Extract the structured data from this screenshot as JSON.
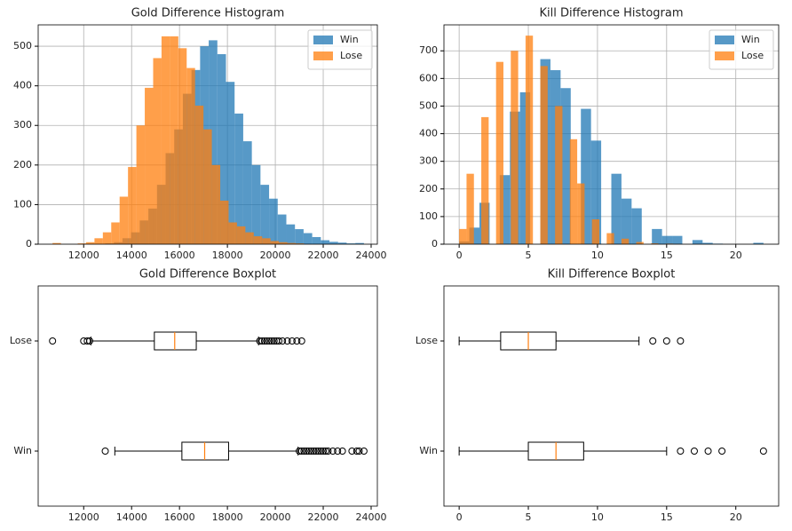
{
  "chart_data": [
    {
      "type": "histogram",
      "title": "Gold Difference Histogram",
      "grid": true,
      "legend": "upper right",
      "alpha": 0.75,
      "xlim": [
        10100,
        24260
      ],
      "xticks": [
        12000,
        14000,
        16000,
        18000,
        20000,
        22000,
        24000
      ],
      "ylim": [
        0,
        554
      ],
      "yticks": [
        0,
        100,
        200,
        300,
        400,
        500
      ],
      "series": [
        {
          "name": "Win",
          "color": "#1f77b4",
          "bins": [
            12900,
            13260,
            13620,
            13980,
            14340,
            14700,
            15060,
            15420,
            15780,
            16140,
            16500,
            16860,
            17220,
            17580,
            17940,
            18300,
            18660,
            19020,
            19380,
            19740,
            20100,
            20460,
            20820,
            21180,
            21540,
            21900,
            22260,
            22620,
            22980,
            23340,
            23700
          ],
          "values": [
            2,
            5,
            15,
            30,
            60,
            90,
            150,
            230,
            290,
            380,
            440,
            500,
            515,
            480,
            410,
            330,
            260,
            200,
            150,
            115,
            75,
            50,
            38,
            28,
            18,
            10,
            6,
            4,
            2,
            3
          ]
        },
        {
          "name": "Lose",
          "color": "#ff7f0e",
          "bins": [
            10700,
            11050,
            11400,
            11750,
            12100,
            12450,
            12800,
            13150,
            13500,
            13850,
            14200,
            14550,
            14900,
            15250,
            15600,
            15950,
            16300,
            16650,
            17000,
            17350,
            17700,
            18050,
            18400,
            18750,
            19100,
            19450,
            19800,
            20150,
            20500,
            20850,
            21200
          ],
          "values": [
            3,
            0,
            0,
            2,
            5,
            15,
            30,
            55,
            120,
            195,
            300,
            395,
            470,
            525,
            525,
            495,
            445,
            350,
            290,
            200,
            110,
            55,
            45,
            30,
            20,
            15,
            8,
            5,
            3,
            2
          ]
        }
      ]
    },
    {
      "type": "histogram",
      "title": "Kill Difference Histogram",
      "grid": true,
      "legend": "upper right",
      "alpha": 0.75,
      "xlim": [
        -1.1,
        23.1
      ],
      "xticks": [
        0,
        5,
        10,
        15,
        20
      ],
      "ylim": [
        0,
        794
      ],
      "yticks": [
        0,
        100,
        200,
        300,
        400,
        500,
        600,
        700
      ],
      "series": [
        {
          "name": "Win",
          "color": "#1f77b4",
          "bins": [
            0,
            0.7333,
            1.4667,
            2.2,
            2.9333,
            3.6667,
            4.4,
            5.1333,
            5.8667,
            6.6,
            7.3333,
            8.0667,
            8.8,
            9.5333,
            10.2667,
            11,
            11.7333,
            12.4667,
            13.2,
            13.9333,
            14.6667,
            15.4,
            16.1333,
            16.8667,
            17.6,
            18.3333,
            19.0667,
            19.8,
            20.5333,
            21.2667,
            22
          ],
          "values": [
            10,
            60,
            150,
            0,
            250,
            480,
            550,
            0,
            670,
            630,
            565,
            0,
            490,
            375,
            0,
            255,
            165,
            130,
            0,
            55,
            30,
            30,
            0,
            15,
            5,
            2,
            0,
            0,
            0,
            5
          ]
        },
        {
          "name": "Lose",
          "color": "#ff7f0e",
          "bins": [
            0,
            0.5333,
            1.0667,
            1.6,
            2.1333,
            2.6667,
            3.2,
            3.7333,
            4.2667,
            4.8,
            5.3333,
            5.8667,
            6.4,
            6.9333,
            7.4667,
            8,
            8.5333,
            9.0667,
            9.6,
            10.1333,
            10.6667,
            11.2,
            11.7333,
            12.2667,
            12.8,
            13.3333,
            13.8667,
            14.4,
            14.9333,
            15.4667,
            16
          ],
          "values": [
            55,
            255,
            0,
            460,
            0,
            660,
            0,
            700,
            0,
            755,
            0,
            645,
            0,
            500,
            0,
            380,
            220,
            0,
            90,
            0,
            40,
            0,
            20,
            0,
            8,
            0,
            3,
            0,
            2,
            1
          ]
        }
      ]
    },
    {
      "type": "boxplot",
      "title": "Gold Difference Boxplot",
      "grid": false,
      "xlim": [
        10100,
        24260
      ],
      "xticks": [
        12000,
        14000,
        16000,
        18000,
        20000,
        22000,
        24000
      ],
      "categories": [
        "Win",
        "Lose"
      ],
      "median_color": "#ff7f0e",
      "boxes": [
        {
          "whislo": 13300,
          "q1": 16100,
          "med": 17050,
          "q3": 18050,
          "whishi": 20950,
          "fliers": [
            12900,
            21000,
            21100,
            21200,
            21300,
            21400,
            21500,
            21600,
            21700,
            21800,
            21900,
            22000,
            22100,
            22200,
            22400,
            22600,
            22800,
            23200,
            23400,
            23500,
            23700
          ]
        },
        {
          "whislo": 12300,
          "q1": 14950,
          "med": 15800,
          "q3": 16700,
          "whishi": 19300,
          "fliers": [
            10700,
            12000,
            12150,
            12250,
            19350,
            19450,
            19550,
            19650,
            19750,
            19850,
            19950,
            20050,
            20150,
            20300,
            20500,
            20700,
            20900,
            21100
          ]
        }
      ]
    },
    {
      "type": "boxplot",
      "title": "Kill Difference Boxplot",
      "grid": false,
      "xlim": [
        -1.1,
        23.1
      ],
      "xticks": [
        0,
        5,
        10,
        15,
        20
      ],
      "categories": [
        "Win",
        "Lose"
      ],
      "median_color": "#ff7f0e",
      "boxes": [
        {
          "whislo": 0,
          "q1": 5,
          "med": 7,
          "q3": 9,
          "whishi": 15,
          "fliers": [
            16,
            17,
            18,
            19,
            22
          ]
        },
        {
          "whislo": 0,
          "q1": 3,
          "med": 5,
          "q3": 7,
          "whishi": 13,
          "fliers": [
            14,
            15,
            16
          ]
        }
      ]
    }
  ]
}
